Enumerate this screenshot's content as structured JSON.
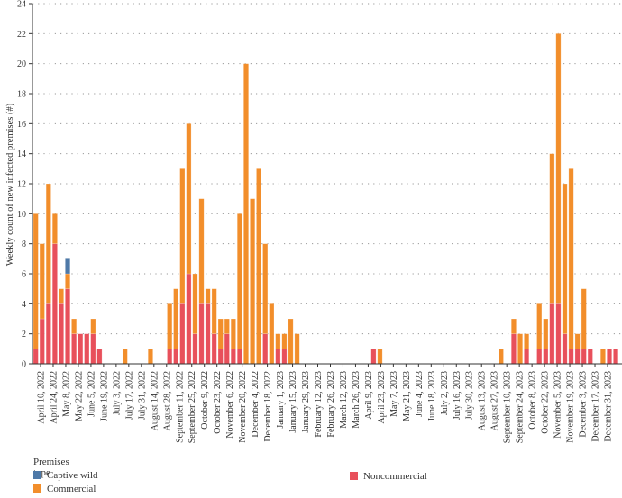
{
  "chart_data": {
    "type": "bar",
    "stacked": true,
    "ylabel": "Weekly count of new infected premises (#)",
    "xlabel": "",
    "ylim": [
      0,
      24
    ],
    "yticks": [
      0,
      2,
      4,
      6,
      8,
      10,
      12,
      14,
      16,
      18,
      20,
      22,
      24
    ],
    "grid": "horizontal dotted",
    "first_week": "April 10, 2022",
    "week_count": 92,
    "xtick_labels": [
      "April 10, 2022",
      "April 24, 2022",
      "May 8, 2022",
      "May 22, 2022",
      "June 5, 2022",
      "June 19, 2022",
      "July 3, 2022",
      "July 17, 2022",
      "July 31, 2022",
      "August 14, 2022",
      "August 28, 2022",
      "September 11, 2022",
      "September 25, 2022",
      "October 9, 2022",
      "October 23, 2022",
      "November 6, 2022",
      "November 20, 2022",
      "December 4, 2022",
      "December 18, 2022",
      "January 1, 2023",
      "January 15, 2023",
      "January 29, 2023",
      "February 12, 2023",
      "February 26, 2023",
      "March 12, 2023",
      "March 26, 2023",
      "April 9, 2023",
      "April 23, 2023",
      "May 7, 2023",
      "May 21, 2023",
      "June 4, 2023",
      "June 18, 2023",
      "July 2, 2023",
      "July 16, 2023",
      "July 30, 2023",
      "August 13, 2023",
      "August 27, 2023",
      "September 10, 2023",
      "September 24, 2023",
      "October 8, 2023",
      "October 22, 2023",
      "November 5, 2023",
      "November 19, 2023",
      "December 3, 2023",
      "December 17, 2023",
      "December 31, 2023"
    ],
    "legend_title": "Premises type",
    "legend_position": "bottom",
    "series": [
      {
        "name": "Noncommercial",
        "color": "#e8505b",
        "values": [
          1,
          3,
          4,
          8,
          4,
          5,
          2,
          2,
          2,
          2,
          1,
          0,
          0,
          0,
          0,
          0,
          0,
          0,
          0,
          0,
          0,
          1,
          1,
          4,
          6,
          2,
          4,
          4,
          2,
          1,
          2,
          1,
          1,
          0,
          0,
          0,
          2,
          0,
          1,
          1,
          0,
          0,
          0,
          0,
          0,
          0,
          0,
          0,
          0,
          0,
          0,
          0,
          0,
          1,
          0,
          0,
          0,
          0,
          0,
          0,
          0,
          0,
          0,
          0,
          0,
          0,
          0,
          0,
          0,
          0,
          0,
          0,
          0,
          0,
          0,
          2,
          0,
          1,
          0,
          1,
          1,
          4,
          4,
          2,
          1,
          1,
          1,
          1,
          0,
          0,
          1,
          1
        ]
      },
      {
        "name": "Commercial",
        "color": "#f28e2b",
        "values": [
          9,
          5,
          8,
          2,
          1,
          1,
          1,
          0,
          0,
          1,
          0,
          0,
          0,
          0,
          1,
          0,
          0,
          0,
          1,
          0,
          0,
          3,
          4,
          9,
          10,
          4,
          7,
          1,
          3,
          2,
          1,
          2,
          9,
          20,
          11,
          13,
          6,
          4,
          1,
          1,
          3,
          2,
          0,
          0,
          0,
          0,
          0,
          0,
          0,
          0,
          0,
          0,
          0,
          0,
          1,
          0,
          0,
          0,
          0,
          0,
          0,
          0,
          0,
          0,
          0,
          0,
          0,
          0,
          0,
          0,
          0,
          0,
          0,
          1,
          0,
          1,
          2,
          1,
          0,
          3,
          2,
          10,
          18,
          10,
          12,
          1,
          4,
          0,
          0,
          1,
          0,
          0
        ]
      },
      {
        "name": "Captive wild",
        "color": "#4e79a7",
        "values": [
          0,
          0,
          0,
          0,
          0,
          1,
          0,
          0,
          0,
          0,
          0,
          0,
          0,
          0,
          0,
          0,
          0,
          0,
          0,
          0,
          0,
          0,
          0,
          0,
          0,
          0,
          0,
          0,
          0,
          0,
          0,
          0,
          0,
          0,
          0,
          0,
          0,
          0,
          0,
          0,
          0,
          0,
          0,
          0,
          0,
          0,
          0,
          0,
          0,
          0,
          0,
          0,
          0,
          0,
          0,
          0,
          0,
          0,
          0,
          0,
          0,
          0,
          0,
          0,
          0,
          0,
          0,
          0,
          0,
          0,
          0,
          0,
          0,
          0,
          0,
          0,
          0,
          0,
          0,
          0,
          0,
          0,
          0,
          0,
          0,
          0,
          0,
          0,
          0,
          0,
          0,
          0
        ]
      }
    ]
  },
  "legend": {
    "title": "Premises type",
    "items": [
      {
        "label": "Captive wild",
        "color": "#4e79a7"
      },
      {
        "label": "Commercial",
        "color": "#f28e2b"
      },
      {
        "label": "Noncommercial",
        "color": "#e8505b"
      }
    ]
  }
}
